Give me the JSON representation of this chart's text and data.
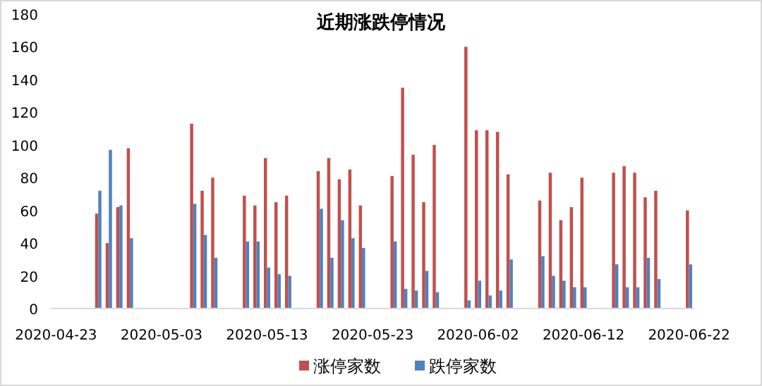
{
  "chart_data": {
    "type": "bar",
    "title": "近期涨跌停情况",
    "x": [
      "2020-04-27",
      "2020-04-28",
      "2020-04-29",
      "2020-04-30",
      "2020-05-06",
      "2020-05-07",
      "2020-05-08",
      "2020-05-11",
      "2020-05-12",
      "2020-05-13",
      "2020-05-14",
      "2020-05-15",
      "2020-05-18",
      "2020-05-19",
      "2020-05-20",
      "2020-05-21",
      "2020-05-22",
      "2020-05-25",
      "2020-05-26",
      "2020-05-27",
      "2020-05-28",
      "2020-05-29",
      "2020-06-01",
      "2020-06-02",
      "2020-06-03",
      "2020-06-04",
      "2020-06-05",
      "2020-06-08",
      "2020-06-09",
      "2020-06-10",
      "2020-06-11",
      "2020-06-12",
      "2020-06-15",
      "2020-06-16",
      "2020-06-17",
      "2020-06-18",
      "2020-06-19",
      "2020-06-22"
    ],
    "series": [
      {
        "name": "涨停家数",
        "color": "#c0504d",
        "values": [
          58,
          40,
          62,
          98,
          113,
          72,
          80,
          69,
          63,
          92,
          65,
          69,
          84,
          92,
          79,
          85,
          63,
          81,
          135,
          94,
          65,
          100,
          160,
          109,
          109,
          108,
          82,
          66,
          83,
          54,
          62,
          80,
          83,
          87,
          83,
          68,
          72,
          60
        ]
      },
      {
        "name": "跌停家数",
        "color": "#4f81bd",
        "values": [
          72,
          97,
          63,
          43,
          64,
          45,
          31,
          41,
          41,
          25,
          21,
          20,
          61,
          31,
          54,
          43,
          37,
          41,
          12,
          11,
          23,
          10,
          5,
          17,
          8,
          11,
          30,
          32,
          20,
          17,
          13,
          13,
          27,
          13,
          13,
          31,
          18,
          27
        ]
      }
    ],
    "xlim": [
      "2020-04-22T12:00",
      "2020-06-22T12:00"
    ],
    "xticks": [
      "2020-04-23",
      "2020-05-03",
      "2020-05-13",
      "2020-05-23",
      "2020-06-02",
      "2020-06-12",
      "2020-06-22"
    ],
    "ylim": [
      0,
      180
    ],
    "yticks": [
      0,
      20,
      40,
      60,
      80,
      100,
      120,
      140,
      160,
      180
    ],
    "legend": "bottom",
    "grid": false
  }
}
